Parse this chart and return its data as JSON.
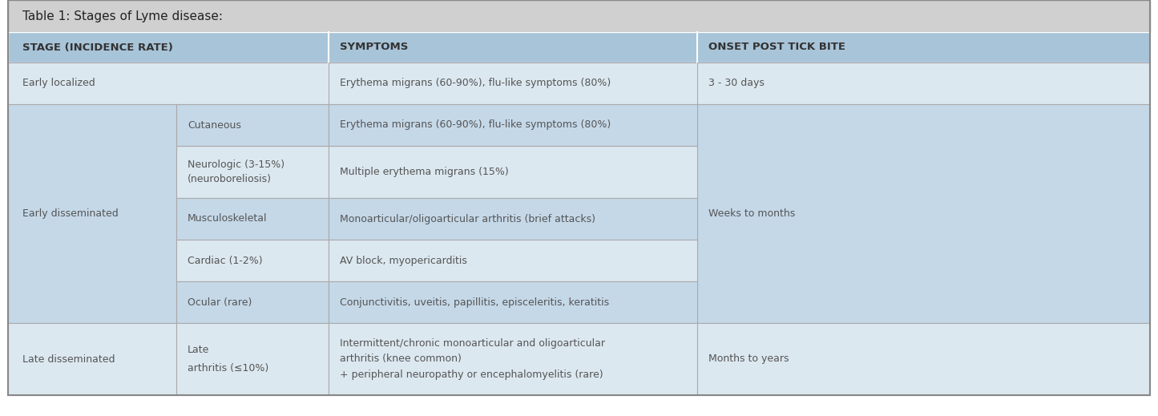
{
  "title": "Table 1: Stages of Lyme disease:",
  "title_bg": "#d0d0d0",
  "header_bg": "#a8c4d8",
  "early_loc_bg": "#dce8f0",
  "early_dis_bg": "#c5d8e8",
  "late_dis_bg": "#dce8f0",
  "sub_row_bg": "#dce8f0",
  "border_color": "#ffffff",
  "divider_color": "#b0c4d4",
  "header_text_color": "#333333",
  "body_text_color": "#555555",
  "headers": [
    "STAGE (INCIDENCE RATE)",
    "SYMPTOMS",
    "ONSET POST TICK BITE"
  ],
  "title_fontsize": 11,
  "header_fontsize": 9.5,
  "body_fontsize": 9
}
